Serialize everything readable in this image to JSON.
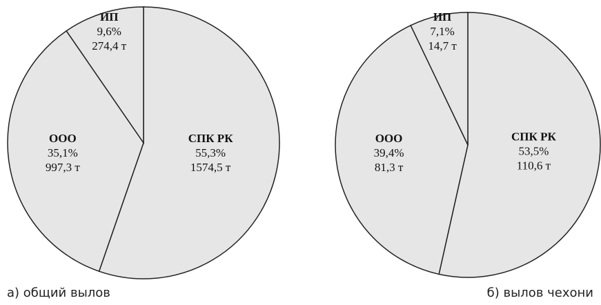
{
  "chart_data": [
    {
      "type": "pie",
      "title": "а) общий вылов",
      "categories": [
        "СПК РК",
        "ООО",
        "ИП"
      ],
      "values": [
        55.3,
        35.1,
        9.6
      ],
      "value_labels": [
        "55,3%",
        "35,1%",
        "9,6%"
      ],
      "amounts": [
        1574.5,
        997.3,
        274.4
      ],
      "amount_labels": [
        "1574,5 т",
        "997,3 т",
        "274,4 т"
      ],
      "color": "#e6e6e6"
    },
    {
      "type": "pie",
      "title": "б) вылов чехони",
      "categories": [
        "СПК РК",
        "ООО",
        "ИП"
      ],
      "values": [
        53.5,
        39.4,
        7.1
      ],
      "value_labels": [
        "53,5%",
        "39,4%",
        "7,1%"
      ],
      "amounts": [
        110.6,
        81.3,
        14.7
      ],
      "amount_labels": [
        "110,6 т",
        "81,3 т",
        "14,7 т"
      ],
      "color": "#e6e6e6"
    }
  ]
}
